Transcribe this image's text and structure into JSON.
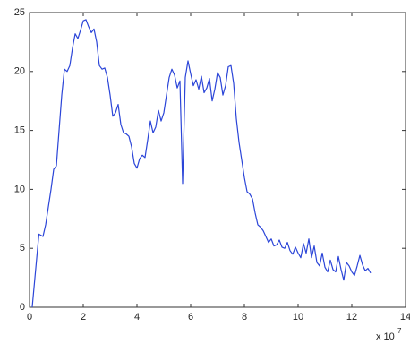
{
  "chart_data": {
    "type": "line",
    "x": [
      0.1,
      0.3,
      0.35,
      0.5,
      0.6,
      0.8,
      0.9,
      1.0,
      1.1,
      1.2,
      1.3,
      1.4,
      1.5,
      1.6,
      1.7,
      1.8,
      1.9,
      2.0,
      2.1,
      2.2,
      2.3,
      2.4,
      2.5,
      2.6,
      2.7,
      2.8,
      2.9,
      3.0,
      3.1,
      3.2,
      3.3,
      3.4,
      3.5,
      3.6,
      3.7,
      3.8,
      3.9,
      4.0,
      4.1,
      4.2,
      4.3,
      4.4,
      4.5,
      4.6,
      4.7,
      4.8,
      4.9,
      5.0,
      5.1,
      5.2,
      5.3,
      5.4,
      5.5,
      5.6,
      5.7,
      5.8,
      5.9,
      6.0,
      6.1,
      6.2,
      6.3,
      6.4,
      6.5,
      6.6,
      6.7,
      6.8,
      6.9,
      7.0,
      7.1,
      7.2,
      7.3,
      7.4,
      7.5,
      7.6,
      7.7,
      7.8,
      7.9,
      8.0,
      8.1,
      8.2,
      8.3,
      8.4,
      8.5,
      8.6,
      8.7,
      8.8,
      8.9,
      9.0,
      9.1,
      9.2,
      9.3,
      9.4,
      9.5,
      9.6,
      9.7,
      9.8,
      9.9,
      10.0,
      10.1,
      10.2,
      10.3,
      10.4,
      10.5,
      10.6,
      10.7,
      10.8,
      10.9,
      11.0,
      11.1,
      11.2,
      11.3,
      11.4,
      11.5,
      11.6,
      11.7,
      11.8,
      11.9,
      12.0,
      12.1,
      12.2,
      12.3,
      12.4,
      12.5,
      12.6,
      12.7
    ],
    "series": [
      {
        "color": "#2b45d8",
        "values": [
          0,
          5,
          6.2,
          6,
          7,
          10,
          11.7,
          12,
          15,
          18,
          20.2,
          20,
          20.5,
          22,
          23.2,
          22.8,
          23.5,
          24.3,
          24.4,
          23.8,
          23.3,
          23.6,
          22.5,
          20.5,
          20.2,
          20.3,
          19.5,
          18,
          16.2,
          16.5,
          17.2,
          15.5,
          14.8,
          14.7,
          14.5,
          13.6,
          12.2,
          11.8,
          12.6,
          12.9,
          12.7,
          14.2,
          15.8,
          14.8,
          15.3,
          16.7,
          15.8,
          16.5,
          18,
          19.5,
          20.2,
          19.7,
          18.6,
          19.2,
          10.5,
          19.5,
          20.9,
          19.8,
          18.8,
          19.3,
          18.5,
          19.6,
          18.2,
          18.6,
          19.4,
          17.5,
          18.5,
          19.9,
          19.5,
          18,
          18.8,
          20.4,
          20.5,
          19,
          16,
          14,
          12.5,
          11,
          9.8,
          9.6,
          9.2,
          8,
          7,
          6.8,
          6.5,
          6,
          5.5,
          5.8,
          5.2,
          5.3,
          5.7,
          5.1,
          5,
          5.5,
          4.8,
          4.5,
          5.1,
          4.6,
          4.2,
          5.4,
          4.6,
          5.8,
          4.2,
          5.2,
          3.8,
          3.5,
          4.6,
          3.4,
          3,
          4,
          3.2,
          3,
          4.3,
          3.2,
          2.3,
          3.8,
          3.5,
          3,
          2.7,
          3.5,
          4.4,
          3.6,
          3.1,
          3.3,
          2.9
        ]
      }
    ],
    "xlim": [
      0,
      14
    ],
    "xticks": [
      0,
      2,
      4,
      6,
      8,
      10,
      12,
      14
    ],
    "ylim": [
      0,
      25
    ],
    "yticks": [
      0,
      5,
      10,
      15,
      20,
      25
    ],
    "x_multiplier": "x 10",
    "x_multiplier_exponent": "7"
  }
}
